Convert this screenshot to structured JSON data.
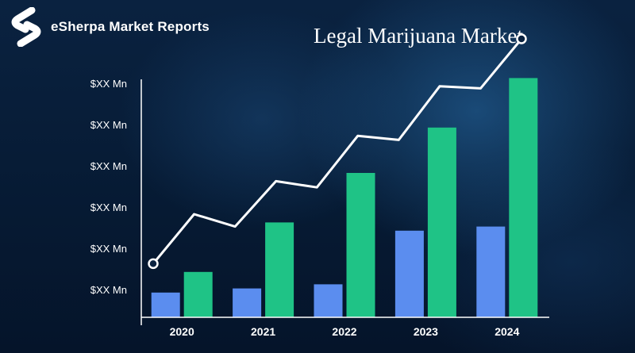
{
  "brand": {
    "name": "eSherpa Market Reports",
    "logo_icon": "esherpa-s-logo",
    "logo_color": "#ffffff"
  },
  "chart_data": {
    "type": "bar",
    "title": "Legal Marijuana Market",
    "xlabel": "",
    "ylabel": "",
    "categories": [
      "2020",
      "2021",
      "2022",
      "2023",
      "2024"
    ],
    "y_tick_labels": [
      "$XX Mn",
      "$XX Mn",
      "$XX Mn",
      "$XX Mn",
      "$XX Mn",
      "$XX Mn"
    ],
    "ylim": [
      0,
      6
    ],
    "series": [
      {
        "values": [
          0.6,
          0.7,
          0.8,
          2.1,
          2.2
        ],
        "color": "#5b8def"
      },
      {
        "values": [
          1.1,
          2.3,
          3.5,
          4.6,
          5.8
        ],
        "color": "#1fc386"
      }
    ],
    "trend_line": {
      "color": "#ffffff",
      "marker": "hollow-circle",
      "values": [
        1.3,
        2.5,
        2.2,
        3.3,
        3.15,
        4.4,
        4.3,
        5.6,
        5.55,
        6.75
      ]
    },
    "grid": false,
    "legend": "none"
  },
  "background": {
    "theme": "dark-navy-molecule-pattern",
    "color": "#06162c"
  }
}
